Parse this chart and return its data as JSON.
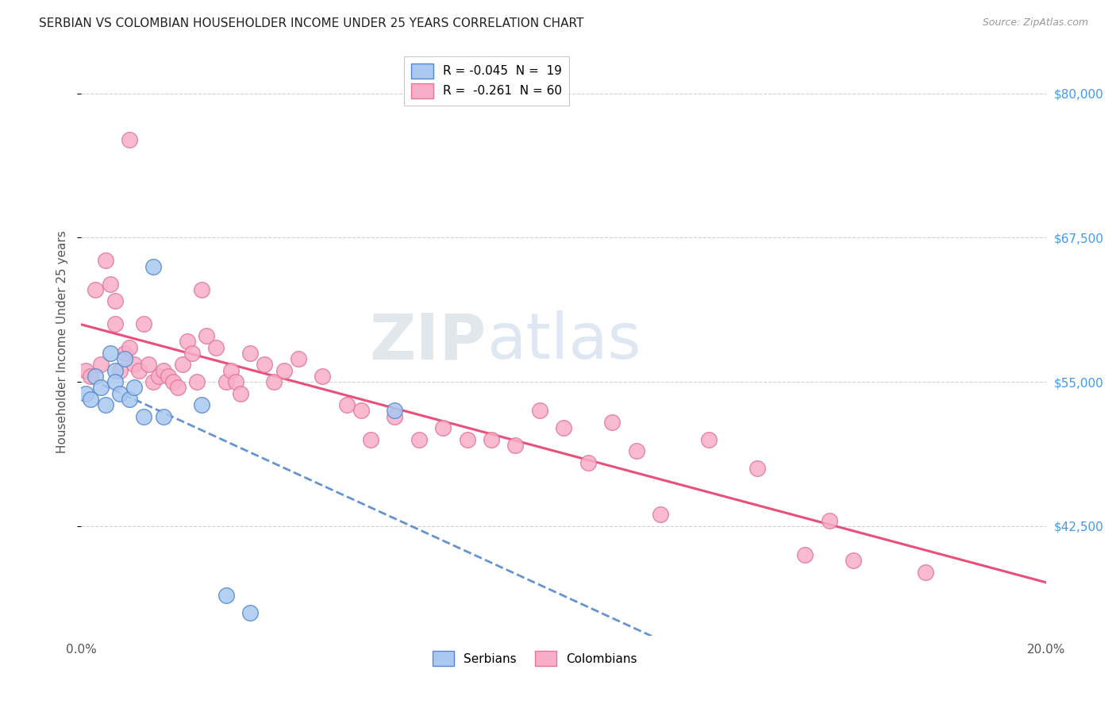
{
  "title": "SERBIAN VS COLOMBIAN HOUSEHOLDER INCOME UNDER 25 YEARS CORRELATION CHART",
  "source": "Source: ZipAtlas.com",
  "ylabel": "Householder Income Under 25 years",
  "xlim": [
    0.0,
    0.2
  ],
  "ylim": [
    33000,
    84000
  ],
  "xticks": [
    0.0,
    0.05,
    0.1,
    0.15,
    0.2
  ],
  "xticklabels": [
    "0.0%",
    "",
    "",
    "",
    "20.0%"
  ],
  "yticks_right": [
    42500,
    55000,
    67500,
    80000
  ],
  "ytick_right_labels": [
    "$42,500",
    "$55,000",
    "$67,500",
    "$80,000"
  ],
  "legend_label1": "R = -0.045  N =  19",
  "legend_label2": "R =  -0.261  N = 60",
  "serbian_color": "#aac8f0",
  "colombian_color": "#f8aec8",
  "serbian_edge_color": "#5588cc",
  "colombian_edge_color": "#e07898",
  "serbian_line_color": "#5588cc",
  "colombian_line_color": "#e8507a",
  "background_color": "#ffffff",
  "grid_color": "#cccccc",
  "watermark_zip": "ZIP",
  "watermark_atlas": "atlas",
  "serbian_x": [
    0.001,
    0.002,
    0.003,
    0.004,
    0.005,
    0.006,
    0.007,
    0.007,
    0.008,
    0.009,
    0.01,
    0.011,
    0.013,
    0.015,
    0.017,
    0.025,
    0.03,
    0.035,
    0.065
  ],
  "serbian_y": [
    54000,
    53500,
    55500,
    54500,
    53000,
    57500,
    56000,
    55000,
    54000,
    57000,
    53500,
    54500,
    52000,
    65000,
    52000,
    53000,
    36500,
    35000,
    52500
  ],
  "colombian_x": [
    0.001,
    0.002,
    0.003,
    0.004,
    0.005,
    0.006,
    0.007,
    0.007,
    0.008,
    0.009,
    0.01,
    0.01,
    0.011,
    0.012,
    0.013,
    0.014,
    0.015,
    0.016,
    0.017,
    0.018,
    0.019,
    0.02,
    0.021,
    0.022,
    0.023,
    0.024,
    0.025,
    0.026,
    0.028,
    0.03,
    0.031,
    0.032,
    0.033,
    0.035,
    0.038,
    0.04,
    0.042,
    0.045,
    0.05,
    0.055,
    0.058,
    0.06,
    0.065,
    0.07,
    0.075,
    0.08,
    0.085,
    0.09,
    0.095,
    0.1,
    0.105,
    0.11,
    0.115,
    0.12,
    0.13,
    0.14,
    0.15,
    0.155,
    0.16,
    0.175
  ],
  "colombian_y": [
    56000,
    55500,
    63000,
    56500,
    65500,
    63500,
    62000,
    60000,
    56000,
    57500,
    58000,
    76000,
    56500,
    56000,
    60000,
    56500,
    55000,
    55500,
    56000,
    55500,
    55000,
    54500,
    56500,
    58500,
    57500,
    55000,
    63000,
    59000,
    58000,
    55000,
    56000,
    55000,
    54000,
    57500,
    56500,
    55000,
    56000,
    57000,
    55500,
    53000,
    52500,
    50000,
    52000,
    50000,
    51000,
    50000,
    50000,
    49500,
    52500,
    51000,
    48000,
    51500,
    49000,
    43500,
    50000,
    47500,
    40000,
    43000,
    39500,
    38500
  ]
}
